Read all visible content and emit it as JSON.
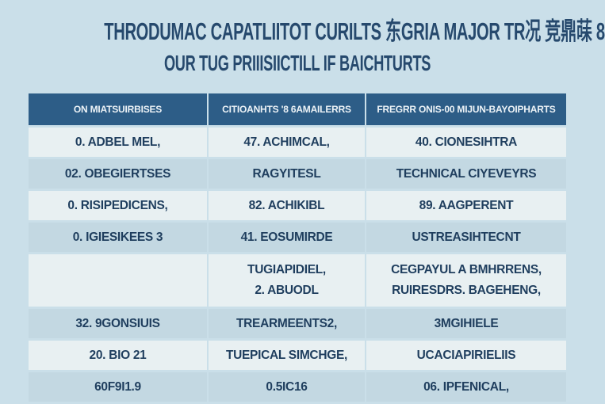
{
  "title": {
    "line1": "THRODUMAC CAPATLIITOT CURILTS 东GRIA MAJOR TR况 竞鼎菋 8",
    "line2": "OUR TUG PRIIISIICTILL IF BAICHTURTS"
  },
  "table": {
    "headers": [
      "ON MIATSUIRBISES",
      "CITIOANHTS '8 6AMAILERRS",
      "FREGRR ONIS-00 MIJUN-BAYOIPHARTS"
    ],
    "rows": [
      {
        "shade": "light",
        "tall": false,
        "cells": [
          "0. ADBEL MEL,",
          "47. ACHIMCAL,",
          "40. CIONESIHTRA"
        ]
      },
      {
        "shade": "dark",
        "tall": false,
        "cells": [
          "02. OBEGIERTSES",
          "RAGYITESL",
          "TECHNICAL CIYEVEYRS"
        ]
      },
      {
        "shade": "light",
        "tall": false,
        "cells": [
          "0. RISIPEDICENS,",
          "82. ACHIKIBL",
          "89. AAGPERENT"
        ]
      },
      {
        "shade": "dark",
        "tall": false,
        "cells": [
          "0. IGIESIKEES 3",
          "41. EOSUMIRDE",
          "USTREASIHTECNT"
        ]
      },
      {
        "shade": "light",
        "tall": true,
        "cells": [
          "",
          [
            "TUGIAPIDIEL,",
            "2. ABUODL"
          ],
          [
            "CEGPAYUL A BMHRRENS,",
            "RUIRESDRS. BAGEHENG,"
          ]
        ]
      },
      {
        "shade": "dark",
        "tall": false,
        "cells": [
          "32. 9GONSIUIS",
          "TREARMEENTS2,",
          "3MGIHIELE"
        ]
      },
      {
        "shade": "light",
        "tall": false,
        "cells": [
          "20. BIO 21",
          "TUEPICAL SIMCHGE,",
          "UCACIAPIRIELIIS"
        ]
      },
      {
        "shade": "dark",
        "tall": false,
        "cells": [
          "60F9I1.9",
          "0.5IC16",
          "06. IPFENICAL,"
        ]
      }
    ]
  },
  "chart_data": {
    "type": "table",
    "title": "THRODUMAC CAPATLIITOT CURILTS 东GRIA MAJOR TR况 竞鼎菋 8 — OUR TUG PRIIISIICTILL IF BAICHTURTS",
    "columns": [
      "ON MIATSUIRBISES",
      "CITIOANHTS '8 6AMAILERRS",
      "FREGRR ONIS-00 MIJUN-BAYOIPHARTS"
    ],
    "rows": [
      [
        "0. ADBEL MEL,",
        "47. ACHIMCAL,",
        "40. CIONESIHTRA"
      ],
      [
        "02. OBEGIERTSES",
        "RAGYITESL",
        "TECHNICAL CIYEVEYRS"
      ],
      [
        "0. RISIPEDICENS,",
        "82. ACHIKIBL",
        "89. AAGPERENT"
      ],
      [
        "0. IGIESIKEES 3",
        "41. EOSUMIRDE",
        "USTREASIHTECNT"
      ],
      [
        "",
        "TUGIAPIDIEL,\n2. ABUODL",
        "CEGPAYUL A BMHRRENS,\nRUIRESDRS. BAGEHENG,"
      ],
      [
        "32. 9GONSIUIS",
        "TREARMEENTS2,",
        "3MGIHIELE"
      ],
      [
        "20. BIO 21",
        "TUEPICAL SIMCHGE,",
        "UCACIAPIRIELIIS"
      ],
      [
        "60F9I1.9",
        "0.5IC16",
        "06. IPFENICAL,"
      ]
    ],
    "layout": {
      "header_bg": "#2d5d87",
      "row_alternating": true,
      "grid": "light separators"
    }
  },
  "colors": {
    "page_bg": "#cadfe9",
    "header_bg": "#2d5d87",
    "header_text": "#edf3f7",
    "row_light": "#e8f0f2",
    "row_dark": "#c3d8e2",
    "text_color": "#1f3e5e",
    "title_color": "#26496d"
  }
}
